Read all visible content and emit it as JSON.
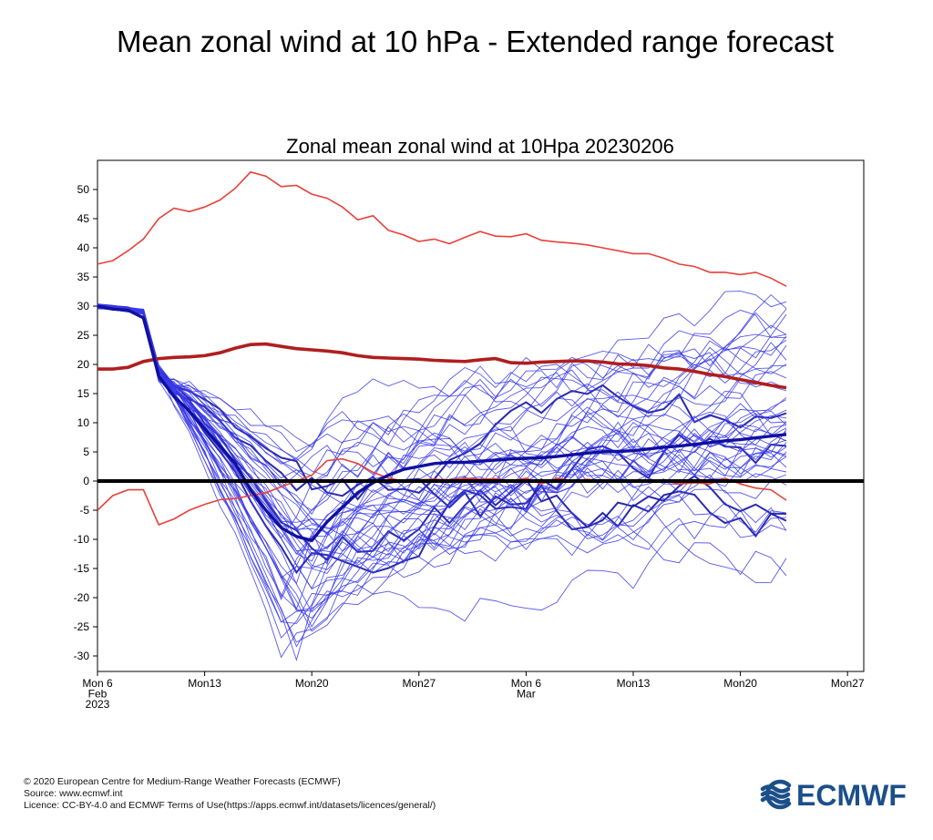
{
  "page": {
    "title": "Mean zonal wind at 10 hPa - Extended range forecast"
  },
  "chart_data": {
    "type": "line",
    "title": "Zonal mean zonal wind at 10Hpa 20230206",
    "xlabel": "",
    "ylabel": "",
    "xlim": [
      0,
      52
    ],
    "ylim": [
      -32,
      55
    ],
    "yticks": [
      50,
      45,
      40,
      35,
      30,
      25,
      20,
      15,
      10,
      5,
      0,
      -5,
      -10,
      -15,
      -20,
      -25,
      -30
    ],
    "xticks": [
      {
        "x": 0,
        "lines": [
          "Mon 6",
          "Feb",
          "2023"
        ]
      },
      {
        "x": 7,
        "lines": [
          "Mon13"
        ]
      },
      {
        "x": 14,
        "lines": [
          "Mon20"
        ]
      },
      {
        "x": 21,
        "lines": [
          "Mon27"
        ]
      },
      {
        "x": 28,
        "lines": [
          "Mon 6",
          "Mar"
        ]
      },
      {
        "x": 35,
        "lines": [
          "Mon13"
        ]
      },
      {
        "x": 42,
        "lines": [
          "Mon20"
        ]
      },
      {
        "x": 49,
        "lines": [
          "Mon27"
        ]
      }
    ],
    "x_unit": "days since 2023-02-06",
    "zero_line": 0,
    "climatology": {
      "max": {
        "name": "Climatological maximum",
        "color": "#e8413a",
        "points": [
          [
            0,
            37.2
          ],
          [
            1,
            37.8
          ],
          [
            2,
            39.5
          ],
          [
            3,
            41.5
          ],
          [
            4,
            45
          ],
          [
            5,
            46.8
          ],
          [
            6,
            46.2
          ],
          [
            7,
            47
          ],
          [
            8,
            48.2
          ],
          [
            9,
            50.2
          ],
          [
            10,
            53
          ],
          [
            11,
            52.3
          ],
          [
            12,
            50.5
          ],
          [
            13,
            50.7
          ],
          [
            14,
            49.2
          ],
          [
            15,
            48.5
          ],
          [
            16,
            47
          ],
          [
            17,
            44.8
          ],
          [
            18,
            45.5
          ],
          [
            19,
            43
          ],
          [
            20,
            42.2
          ],
          [
            21,
            41.1
          ],
          [
            22,
            41.5
          ],
          [
            23,
            40.7
          ],
          [
            24,
            41.8
          ],
          [
            25,
            42.8
          ],
          [
            26,
            42
          ],
          [
            27,
            41.9
          ],
          [
            28,
            42.4
          ],
          [
            29,
            41.3
          ],
          [
            30,
            41
          ],
          [
            31,
            40.8
          ],
          [
            32,
            40.5
          ],
          [
            33,
            40
          ],
          [
            34,
            39.5
          ],
          [
            35,
            39
          ],
          [
            36,
            39
          ],
          [
            37,
            38.2
          ],
          [
            38,
            37.2
          ],
          [
            39,
            36.8
          ],
          [
            40,
            35.8
          ],
          [
            41,
            35.8
          ],
          [
            42,
            35.4
          ],
          [
            43,
            35.8
          ],
          [
            44,
            34.8
          ],
          [
            45,
            33.4
          ]
        ]
      },
      "mean": {
        "name": "Climatological mean",
        "color": "#b01e1e",
        "points": [
          [
            0,
            19.2
          ],
          [
            1,
            19.2
          ],
          [
            2,
            19.5
          ],
          [
            3,
            20.5
          ],
          [
            4,
            21
          ],
          [
            5,
            21.2
          ],
          [
            6,
            21.3
          ],
          [
            7,
            21.5
          ],
          [
            8,
            22
          ],
          [
            9,
            22.8
          ],
          [
            10,
            23.4
          ],
          [
            11,
            23.5
          ],
          [
            12,
            23.1
          ],
          [
            13,
            22.7
          ],
          [
            14,
            22.5
          ],
          [
            15,
            22.3
          ],
          [
            16,
            22
          ],
          [
            17,
            21.5
          ],
          [
            18,
            21.2
          ],
          [
            19,
            21.1
          ],
          [
            20,
            21
          ],
          [
            21,
            20.9
          ],
          [
            22,
            20.7
          ],
          [
            23,
            20.6
          ],
          [
            24,
            20.5
          ],
          [
            25,
            20.8
          ],
          [
            26,
            21
          ],
          [
            27,
            20.3
          ],
          [
            28,
            20.2
          ],
          [
            29,
            20.4
          ],
          [
            30,
            20.5
          ],
          [
            31,
            20.6
          ],
          [
            32,
            20.6
          ],
          [
            33,
            20.4
          ],
          [
            34,
            20.1
          ],
          [
            35,
            20
          ],
          [
            36,
            19.8
          ],
          [
            37,
            19.4
          ],
          [
            38,
            19.2
          ],
          [
            39,
            18.8
          ],
          [
            40,
            18.3
          ],
          [
            41,
            17.9
          ],
          [
            42,
            17.4
          ],
          [
            43,
            16.9
          ],
          [
            44,
            16.4
          ],
          [
            45,
            16
          ]
        ]
      },
      "min": {
        "name": "Climatological minimum",
        "color": "#e8413a",
        "points": [
          [
            0,
            -5
          ],
          [
            1,
            -2.5
          ],
          [
            2,
            -1.5
          ],
          [
            3,
            -1.5
          ],
          [
            4,
            -7.5
          ],
          [
            5,
            -6.5
          ],
          [
            6,
            -5
          ],
          [
            7,
            -4
          ],
          [
            8,
            -3.2
          ],
          [
            9,
            -3
          ],
          [
            10,
            -2.5
          ],
          [
            11,
            -2
          ],
          [
            12,
            -1
          ],
          [
            13,
            0
          ],
          [
            14,
            1
          ],
          [
            15,
            3.5
          ],
          [
            16,
            3.8
          ],
          [
            17,
            3
          ],
          [
            18,
            1.5
          ],
          [
            19,
            0.5
          ],
          [
            20,
            0
          ],
          [
            21,
            0.2
          ],
          [
            22,
            0.3
          ],
          [
            23,
            0.2
          ],
          [
            24,
            0.5
          ],
          [
            25,
            0.3
          ],
          [
            26,
            0.4
          ],
          [
            27,
            0
          ],
          [
            28,
            0.5
          ],
          [
            29,
            -0.5
          ],
          [
            30,
            0.5
          ],
          [
            31,
            0
          ],
          [
            32,
            0.3
          ],
          [
            33,
            0
          ],
          [
            34,
            -0.2
          ],
          [
            35,
            0
          ],
          [
            36,
            0.2
          ],
          [
            37,
            0
          ],
          [
            38,
            -0.5
          ],
          [
            39,
            -0.3
          ],
          [
            40,
            -0.5
          ],
          [
            41,
            0.5
          ],
          [
            42,
            -0.5
          ],
          [
            43,
            -1.2
          ],
          [
            44,
            -1.5
          ],
          [
            45,
            -3.3
          ]
        ]
      }
    },
    "ensemble_mean": {
      "name": "Ensemble mean",
      "color": "#1010a0",
      "points": [
        [
          0,
          30
        ],
        [
          1,
          29.5
        ],
        [
          2,
          29.3
        ],
        [
          3,
          28
        ],
        [
          4,
          18
        ],
        [
          5,
          14.5
        ],
        [
          6,
          12
        ],
        [
          7,
          9
        ],
        [
          8,
          6
        ],
        [
          9,
          3
        ],
        [
          10,
          -1.5
        ],
        [
          11,
          -5
        ],
        [
          12,
          -8
        ],
        [
          13,
          -9.5
        ],
        [
          14,
          -10.2
        ],
        [
          15,
          -7
        ],
        [
          16,
          -4.5
        ],
        [
          17,
          -2
        ],
        [
          18,
          -0.3
        ],
        [
          19,
          1
        ],
        [
          20,
          2
        ],
        [
          21,
          2.5
        ],
        [
          22,
          3
        ],
        [
          23,
          3.2
        ],
        [
          24,
          3.2
        ],
        [
          25,
          3.4
        ],
        [
          26,
          3.6
        ],
        [
          27,
          3.8
        ],
        [
          28,
          3.9
        ],
        [
          29,
          4
        ],
        [
          30,
          4.2
        ],
        [
          31,
          4.5
        ],
        [
          32,
          4.8
        ],
        [
          33,
          5
        ],
        [
          34,
          5.1
        ],
        [
          35,
          5.2
        ],
        [
          36,
          5.5
        ],
        [
          37,
          5.8
        ],
        [
          38,
          6
        ],
        [
          39,
          6.3
        ],
        [
          40,
          6.6
        ],
        [
          41,
          6.9
        ],
        [
          42,
          7.1
        ],
        [
          43,
          7.4
        ],
        [
          44,
          7.7
        ],
        [
          45,
          8
        ]
      ]
    },
    "ensemble_members": {
      "count": 50,
      "x_range": [
        0,
        45
      ],
      "color": "#3a3ae8",
      "start": 30,
      "trough_day_range": [
        12,
        15
      ],
      "trough_value_range": [
        -30.5,
        6
      ],
      "end_value_range": [
        -11.5,
        28
      ],
      "highlight_members": 4
    },
    "legend": []
  },
  "footer": {
    "copyright": "© 2020 European Centre for Medium-Range Weather Forecasts (ECMWF)",
    "source": "Source: www.ecmwf.int",
    "licence": "Licence: CC-BY-4.0 and ECMWF Terms of Use(https://apps.ecmwf.int/datasets/licences/general/)"
  },
  "logo": {
    "text": "ECMWF",
    "color": "#1b4f8a"
  }
}
